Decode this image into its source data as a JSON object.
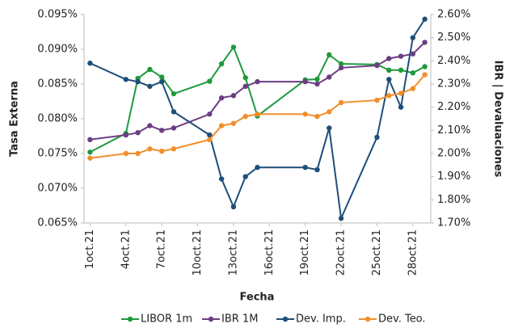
{
  "chart_data": {
    "type": "line",
    "xlabel": "Fecha",
    "ylabel": "Tasa Externa",
    "y2label": "IBR | Devaluaciones",
    "x": [
      1,
      4,
      5,
      6,
      7,
      8,
      11,
      12,
      13,
      14,
      15,
      19,
      20,
      21,
      22,
      25,
      26,
      27,
      28,
      29
    ],
    "xlim": [
      0.5,
      29.5
    ],
    "xticks": [
      {
        "value": 1,
        "label": "1oct.21"
      },
      {
        "value": 4,
        "label": "4oct.21"
      },
      {
        "value": 7,
        "label": "7oct.21"
      },
      {
        "value": 10,
        "label": "10oct.21"
      },
      {
        "value": 13,
        "label": "13oct.21"
      },
      {
        "value": 16,
        "label": "16oct.21"
      },
      {
        "value": 19,
        "label": "19oct.21"
      },
      {
        "value": 22,
        "label": "22oct.21"
      },
      {
        "value": 25,
        "label": "25oct.21"
      },
      {
        "value": 28,
        "label": "28oct.21"
      }
    ],
    "ylim": [
      0.065,
      0.095
    ],
    "yticks": [
      {
        "value": 0.065,
        "label": "0.065%"
      },
      {
        "value": 0.07,
        "label": "0.070%"
      },
      {
        "value": 0.075,
        "label": "0.075%"
      },
      {
        "value": 0.08,
        "label": "0.080%"
      },
      {
        "value": 0.085,
        "label": "0.085%"
      },
      {
        "value": 0.09,
        "label": "0.090%"
      },
      {
        "value": 0.095,
        "label": "0.095%"
      }
    ],
    "y2lim": [
      1.7,
      2.6
    ],
    "y2ticks": [
      {
        "value": 1.7,
        "label": "1.70%"
      },
      {
        "value": 1.8,
        "label": "1.80%"
      },
      {
        "value": 1.9,
        "label": "1.90%"
      },
      {
        "value": 2.0,
        "label": "2.00%"
      },
      {
        "value": 2.1,
        "label": "2.10%"
      },
      {
        "value": 2.2,
        "label": "2.20%"
      },
      {
        "value": 2.3,
        "label": "2.30%"
      },
      {
        "value": 2.4,
        "label": "2.40%"
      },
      {
        "value": 2.5,
        "label": "2.50%"
      },
      {
        "value": 2.6,
        "label": "2.60%"
      }
    ],
    "grid": false,
    "legend": "bottom",
    "series": [
      {
        "name": "LIBOR 1m",
        "color": "#1e9a3c",
        "values": [
          0.0752,
          0.0779,
          0.0858,
          0.0871,
          0.086,
          0.0836,
          0.0854,
          0.0879,
          0.0903,
          0.0859,
          0.0804,
          0.0856,
          0.0857,
          0.0892,
          0.0879,
          0.0878,
          0.087,
          0.087,
          0.0866,
          0.0875
        ]
      },
      {
        "name": "IBR 1M",
        "color": "#6b3e83",
        "axis": "y2",
        "values": [
          2.06,
          2.08,
          2.09,
          2.12,
          2.1,
          2.11,
          2.17,
          2.24,
          2.25,
          2.29,
          2.31,
          2.31,
          2.3,
          2.33,
          2.37,
          2.38,
          2.41,
          2.42,
          2.43,
          2.48
        ]
      },
      {
        "name": "Dev. Imp.",
        "color": "#1f4e79",
        "axis": "y2",
        "values": [
          2.39,
          2.32,
          2.31,
          2.29,
          2.31,
          2.18,
          2.08,
          1.89,
          1.77,
          1.9,
          1.94,
          1.94,
          1.93,
          2.11,
          1.72,
          2.07,
          2.32,
          2.2,
          2.5,
          2.58
        ]
      },
      {
        "name": "Dev. Teo.",
        "color": "#f28e2b",
        "axis": "y2",
        "values": [
          1.98,
          2.0,
          2.0,
          2.02,
          2.01,
          2.02,
          2.06,
          2.12,
          2.13,
          2.16,
          2.17,
          2.17,
          2.16,
          2.18,
          2.22,
          2.23,
          2.25,
          2.26,
          2.28,
          2.34
        ]
      }
    ]
  }
}
